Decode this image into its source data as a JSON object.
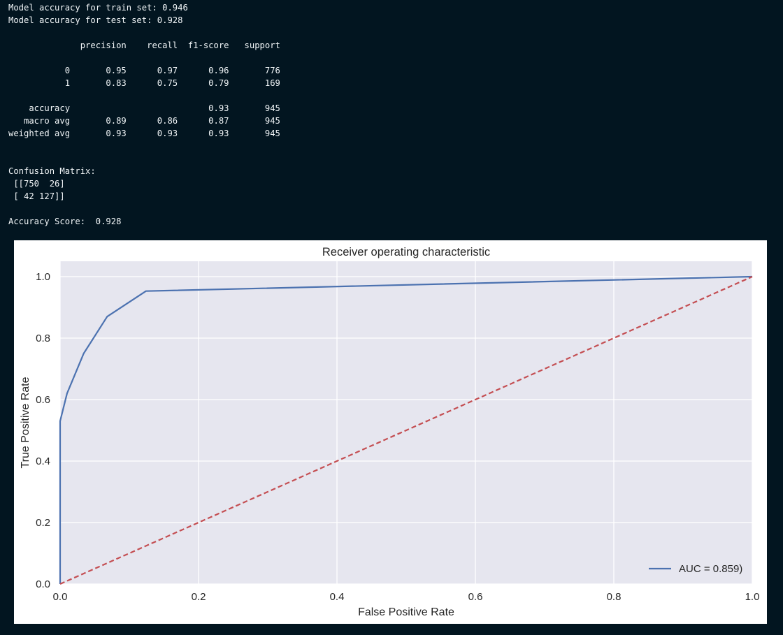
{
  "console": {
    "lines": [
      "Model accuracy for train set: 0.946",
      "Model accuracy for test set: 0.928",
      "",
      "              precision    recall  f1-score   support",
      "",
      "           0       0.95      0.97      0.96       776",
      "           1       0.83      0.75      0.79       169",
      "",
      "    accuracy                           0.93       945",
      "   macro avg       0.89      0.86      0.87       945",
      "weighted avg       0.93      0.93      0.93       945",
      "",
      "",
      "Confusion Matrix:",
      " [[750  26]",
      " [ 42 127]]",
      "",
      "Accuracy Score:  0.928"
    ]
  },
  "chart_data": {
    "type": "line",
    "title": "Receiver operating characteristic",
    "xlabel": "False Positive Rate",
    "ylabel": "True Positive Rate",
    "xlim": [
      0.0,
      1.0
    ],
    "ylim": [
      0.0,
      1.05
    ],
    "xticks": [
      "0.0",
      "0.2",
      "0.4",
      "0.6",
      "0.8",
      "1.0"
    ],
    "yticks": [
      "0.0",
      "0.2",
      "0.4",
      "0.6",
      "0.8",
      "1.0"
    ],
    "grid": true,
    "legend_position": "lower-right",
    "series": [
      {
        "name": "AUC = 0.859)",
        "color": "#4c72b0",
        "style": "solid",
        "x": [
          0.0,
          0.0,
          0.01,
          0.034,
          0.068,
          0.124,
          1.0
        ],
        "y": [
          0.0,
          0.53,
          0.62,
          0.75,
          0.87,
          0.953,
          1.0
        ]
      },
      {
        "color": "#c44e52",
        "style": "dashed",
        "x": [
          0.0,
          1.0
        ],
        "y": [
          0.0,
          1.0
        ]
      }
    ]
  }
}
